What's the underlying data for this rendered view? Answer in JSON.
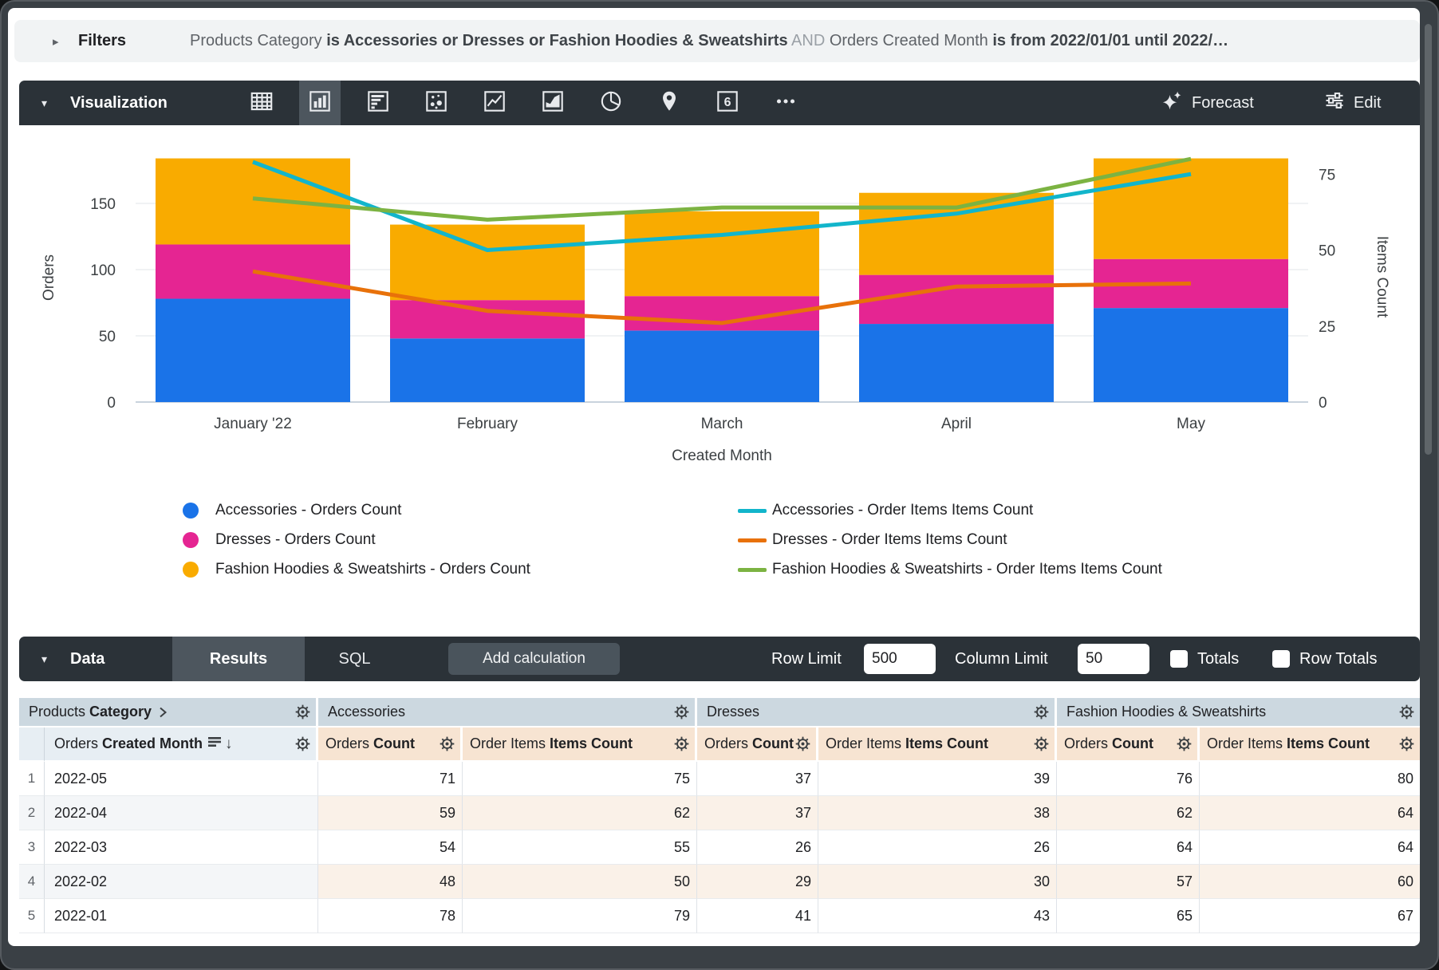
{
  "filters": {
    "label": "Filters",
    "segments": [
      {
        "text": "Products Category ",
        "style": "dim"
      },
      {
        "text": "is Accessories or Dresses or Fashion Hoodies & Sweatshirts",
        "style": "bold"
      },
      {
        "text": " AND ",
        "style": "and"
      },
      {
        "text": "Orders Created Month ",
        "style": "dim"
      },
      {
        "text": "is from 2022/01/01 until 2022/…",
        "style": "bold"
      }
    ]
  },
  "viz_toolbar": {
    "title": "Visualization",
    "icons": [
      "table-chart-icon",
      "column-chart-icon",
      "bar-chart-icon",
      "scatter-chart-icon",
      "line-chart-icon",
      "area-chart-icon",
      "pie-chart-icon",
      "map-chart-icon",
      "single-value-icon",
      "more-icon"
    ],
    "selected_icon_index": 1,
    "forecast_label": "Forecast",
    "edit_label": "Edit"
  },
  "chart_data": {
    "type": "bar-line-combo",
    "categories": [
      "January '22",
      "February",
      "March",
      "April",
      "May"
    ],
    "xlabel": "Created Month",
    "left_axis": {
      "title": "Orders",
      "ticks": [
        0,
        50,
        100,
        150
      ]
    },
    "right_axis": {
      "title": "Items Count",
      "ticks": [
        0,
        25,
        50,
        75
      ]
    },
    "bar_series": [
      {
        "name": "Accessories - Orders Count",
        "color": "#1A73E8",
        "values": [
          78,
          48,
          54,
          59,
          71
        ]
      },
      {
        "name": "Dresses - Orders Count",
        "color": "#E52592",
        "values": [
          41,
          29,
          26,
          37,
          37
        ]
      },
      {
        "name": "Fashion Hoodies & Sweatshirts - Orders Count",
        "color": "#F9AB00",
        "values": [
          65,
          57,
          64,
          62,
          76
        ]
      }
    ],
    "line_series": [
      {
        "name": "Accessories - Order Items Items Count",
        "color": "#12B5CB",
        "values": [
          79,
          50,
          55,
          62,
          75
        ]
      },
      {
        "name": "Dresses - Order Items Items Count",
        "color": "#E8710A",
        "values": [
          43,
          30,
          26,
          38,
          39
        ]
      },
      {
        "name": "Fashion Hoodies & Sweatshirts - Order Items Items Count",
        "color": "#7CB342",
        "values": [
          67,
          60,
          64,
          64,
          80
        ]
      }
    ]
  },
  "data_toolbar": {
    "title": "Data",
    "tabs": [
      {
        "label": "Results",
        "active": true
      },
      {
        "label": "SQL",
        "active": false
      }
    ],
    "add_calculation_label": "Add calculation",
    "row_limit_label": "Row Limit",
    "row_limit_value": "500",
    "column_limit_label": "Column Limit",
    "column_limit_value": "50",
    "totals_label": "Totals",
    "totals_checked": false,
    "row_totals_label": "Row Totals",
    "row_totals_checked": false
  },
  "table": {
    "groups": [
      {
        "prefix": "Products ",
        "bold": "Category",
        "has_chevron": true
      },
      {
        "label": "Accessories"
      },
      {
        "label": "Dresses"
      },
      {
        "label": "Fashion Hoodies & Sweatshirts"
      }
    ],
    "dim_column": {
      "prefix": "Orders ",
      "bold": "Created Month"
    },
    "measure_columns": [
      {
        "prefix": "Orders ",
        "bold": "Count"
      },
      {
        "prefix": "Order Items ",
        "bold": "Items Count"
      }
    ],
    "rows": [
      {
        "index": 1,
        "month": "2022-05",
        "values": [
          71,
          75,
          37,
          39,
          76,
          80
        ]
      },
      {
        "index": 2,
        "month": "2022-04",
        "values": [
          59,
          62,
          37,
          38,
          62,
          64
        ]
      },
      {
        "index": 3,
        "month": "2022-03",
        "values": [
          54,
          55,
          26,
          26,
          64,
          64
        ]
      },
      {
        "index": 4,
        "month": "2022-02",
        "values": [
          48,
          50,
          29,
          30,
          57,
          60
        ]
      },
      {
        "index": 5,
        "month": "2022-01",
        "values": [
          78,
          79,
          41,
          43,
          65,
          67
        ]
      }
    ]
  }
}
